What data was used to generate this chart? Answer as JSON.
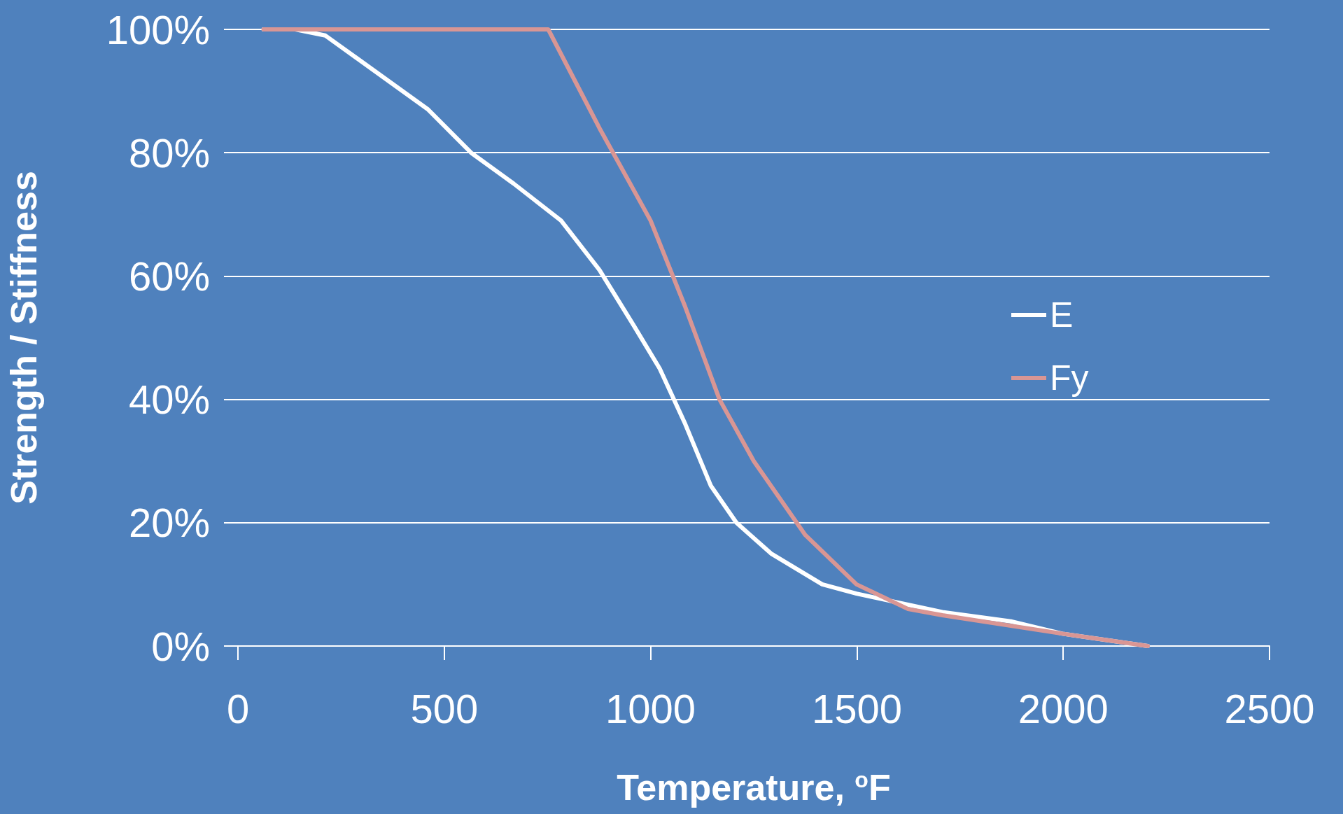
{
  "chart_data": {
    "type": "line",
    "xlabel": "Temperature, $^{o}$F",
    "ylabel": "Strength / Stiffness",
    "xlim": [
      0,
      2500
    ],
    "xticks": [
      0,
      500,
      1000,
      1500,
      2000,
      2500
    ],
    "ylim": [
      0,
      100
    ],
    "yticks": [
      {
        "value": 0,
        "label": "0%"
      },
      {
        "value": 20,
        "label": "20%"
      },
      {
        "value": 40,
        "label": "40%"
      },
      {
        "value": 60,
        "label": "60%"
      },
      {
        "value": 80,
        "label": "80%"
      },
      {
        "value": 100,
        "label": "100%"
      }
    ],
    "grid": "y",
    "legend": "right",
    "marker": "none",
    "line_style": "solid",
    "series": [
      {
        "name": "E",
        "color": "#ffffff",
        "x": [
          62,
          139,
          212,
          461,
          565,
          668,
          783,
          876,
          959,
          1022,
          1084,
          1146,
          1208,
          1292,
          1416,
          1499,
          1707,
          1873,
          1998,
          2205
        ],
        "values": [
          100,
          100,
          99,
          87,
          80,
          75,
          69,
          61,
          52,
          45,
          36,
          26,
          20,
          15,
          10,
          8.5,
          5.5,
          4,
          2,
          0
        ]
      },
      {
        "name": "Fy",
        "color": "#d99694",
        "x": [
          62,
          586,
          710,
          752,
          876,
          1000,
          1084,
          1167,
          1250,
          1375,
          1499,
          1624,
          1707,
          1998,
          2205
        ],
        "values": [
          100,
          100,
          100,
          100,
          84,
          69,
          55,
          40,
          30,
          18,
          10,
          6,
          5,
          2,
          0
        ]
      }
    ]
  }
}
